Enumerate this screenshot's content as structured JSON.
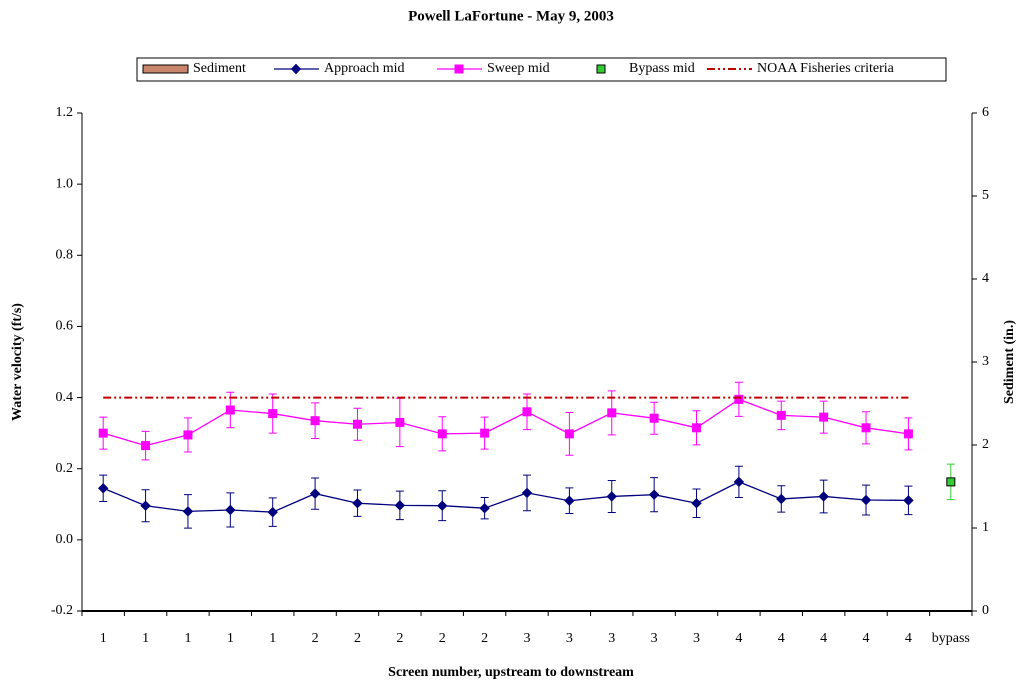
{
  "chart_data": {
    "type": "line",
    "title": "Powell LaFortune - May 9, 2003",
    "x_label": "Screen number, upstream to downstream",
    "y_label": "Water velocity (ft/s)",
    "y2_label": "Sediment (in.)",
    "categories": [
      "1",
      "1",
      "1",
      "1",
      "1",
      "2",
      "2",
      "2",
      "2",
      "2",
      "3",
      "3",
      "3",
      "3",
      "3",
      "4",
      "4",
      "4",
      "4",
      "4",
      "bypass"
    ],
    "ylim": [
      -0.2,
      1.2
    ],
    "yticks": [
      -0.2,
      {
        "value": 0,
        "label": "0.0"
      },
      0.2,
      0.4,
      0.6,
      0.8,
      {
        "value": 1,
        "label": "1.0"
      },
      1.2
    ],
    "y2lim": [
      0,
      6
    ],
    "y2ticks": [
      0,
      1,
      2,
      3,
      4,
      5,
      6
    ],
    "series": [
      {
        "name": "Sediment",
        "style": "bar",
        "axis": "y2",
        "color": "#c8866a",
        "values": [
          0,
          0,
          0,
          0,
          0,
          0,
          0,
          0,
          0,
          0,
          0,
          0,
          0,
          0,
          0,
          0,
          0,
          0,
          0,
          0,
          null
        ]
      },
      {
        "name": "Approach mid",
        "style": "line",
        "marker": "diamond",
        "color": "#00007f",
        "values": [
          0.145,
          0.096,
          0.08,
          0.084,
          0.078,
          0.13,
          0.103,
          0.097,
          0.096,
          0.089,
          0.132,
          0.11,
          0.122,
          0.127,
          0.103,
          0.163,
          0.115,
          0.122,
          0.112,
          0.111,
          null
        ],
        "errors": [
          0.037,
          0.045,
          0.047,
          0.048,
          0.04,
          0.044,
          0.037,
          0.04,
          0.042,
          0.03,
          0.05,
          0.036,
          0.045,
          0.048,
          0.04,
          0.044,
          0.037,
          0.046,
          0.042,
          0.04,
          null
        ]
      },
      {
        "name": "Sweep mid",
        "style": "line",
        "marker": "square",
        "color": "#ff00ff",
        "values": [
          0.3,
          0.265,
          0.295,
          0.365,
          0.355,
          0.335,
          0.325,
          0.33,
          0.298,
          0.3,
          0.36,
          0.298,
          0.357,
          0.342,
          0.315,
          0.395,
          0.35,
          0.345,
          0.315,
          0.298,
          null
        ],
        "errors": [
          0.045,
          0.04,
          0.048,
          0.05,
          0.055,
          0.05,
          0.045,
          0.068,
          0.048,
          0.045,
          0.05,
          0.06,
          0.062,
          0.045,
          0.048,
          0.048,
          0.04,
          0.045,
          0.045,
          0.045,
          null
        ]
      },
      {
        "name": "Bypass mid",
        "style": "marker",
        "marker": "square",
        "color": "#33cc33",
        "values": [
          null,
          null,
          null,
          null,
          null,
          null,
          null,
          null,
          null,
          null,
          null,
          null,
          null,
          null,
          null,
          null,
          null,
          null,
          null,
          null,
          0.163
        ],
        "errors": [
          null,
          null,
          null,
          null,
          null,
          null,
          null,
          null,
          null,
          null,
          null,
          null,
          null,
          null,
          null,
          null,
          null,
          null,
          null,
          null,
          0.05
        ]
      },
      {
        "name": "NOAA Fisheries criteria",
        "style": "dashdot",
        "color": "#c00000",
        "values": [
          0.4,
          0.4,
          0.4,
          0.4,
          0.4,
          0.4,
          0.4,
          0.4,
          0.4,
          0.4,
          0.4,
          0.4,
          0.4,
          0.4,
          0.4,
          0.4,
          0.4,
          0.4,
          0.4,
          0.4,
          null
        ]
      }
    ]
  }
}
